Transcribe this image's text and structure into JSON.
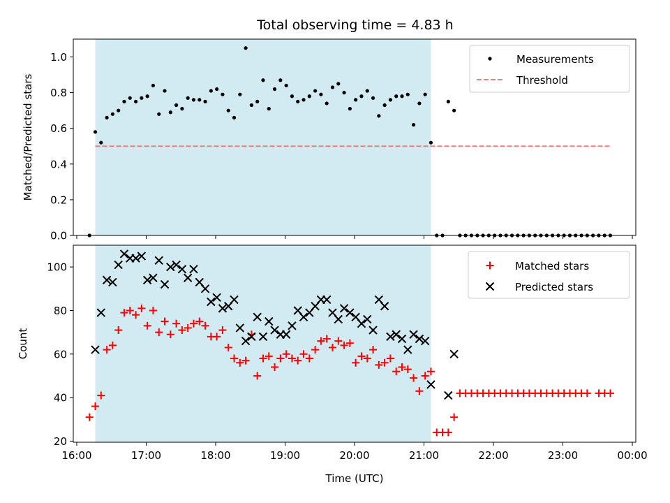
{
  "chart_data": [
    {
      "type": "scatter",
      "title": "Total observing time = 4.83 h",
      "xlabel": "",
      "ylabel": "Matched/Predicted stars",
      "xlim": [
        "15:57",
        "00:03"
      ],
      "ylim": [
        0.0,
        1.1
      ],
      "yticks": [
        0.0,
        0.2,
        0.4,
        0.6,
        0.8,
        1.0
      ],
      "ytick_labels": [
        "0.0",
        "0.2",
        "0.4",
        "0.6",
        "0.8",
        "1.0"
      ],
      "shaded_span": [
        "16:16",
        "21:06"
      ],
      "shade_color": "#add8e6",
      "grid": false,
      "legend_position": "top-right",
      "series": [
        {
          "name": "Measurements",
          "color": "#000000",
          "marker": "dot",
          "points": [
            [
              "16:11",
              0.0
            ],
            [
              "16:16",
              0.58
            ],
            [
              "16:21",
              0.52
            ],
            [
              "16:26",
              0.66
            ],
            [
              "16:31",
              0.68
            ],
            [
              "16:36",
              0.7
            ],
            [
              "16:41",
              0.75
            ],
            [
              "16:46",
              0.77
            ],
            [
              "16:51",
              0.75
            ],
            [
              "16:56",
              0.77
            ],
            [
              "17:01",
              0.78
            ],
            [
              "17:06",
              0.84
            ],
            [
              "17:11",
              0.68
            ],
            [
              "17:16",
              0.81
            ],
            [
              "17:21",
              0.69
            ],
            [
              "17:26",
              0.73
            ],
            [
              "17:31",
              0.71
            ],
            [
              "17:36",
              0.77
            ],
            [
              "17:41",
              0.76
            ],
            [
              "17:46",
              0.76
            ],
            [
              "17:51",
              0.75
            ],
            [
              "17:56",
              0.81
            ],
            [
              "18:01",
              0.82
            ],
            [
              "18:06",
              0.79
            ],
            [
              "18:11",
              0.7
            ],
            [
              "18:16",
              0.66
            ],
            [
              "18:21",
              0.79
            ],
            [
              "18:26",
              1.05
            ],
            [
              "18:31",
              0.73
            ],
            [
              "18:36",
              0.75
            ],
            [
              "18:41",
              0.87
            ],
            [
              "18:46",
              0.71
            ],
            [
              "18:51",
              0.82
            ],
            [
              "18:56",
              0.87
            ],
            [
              "19:01",
              0.84
            ],
            [
              "19:06",
              0.78
            ],
            [
              "19:11",
              0.75
            ],
            [
              "19:16",
              0.76
            ],
            [
              "19:21",
              0.78
            ],
            [
              "19:26",
              0.81
            ],
            [
              "19:31",
              0.79
            ],
            [
              "19:36",
              0.74
            ],
            [
              "19:41",
              0.83
            ],
            [
              "19:46",
              0.85
            ],
            [
              "19:51",
              0.8
            ],
            [
              "19:56",
              0.71
            ],
            [
              "20:01",
              0.76
            ],
            [
              "20:06",
              0.78
            ],
            [
              "20:11",
              0.81
            ],
            [
              "20:16",
              0.77
            ],
            [
              "20:21",
              0.67
            ],
            [
              "20:26",
              0.73
            ],
            [
              "20:31",
              0.76
            ],
            [
              "20:36",
              0.78
            ],
            [
              "20:41",
              0.78
            ],
            [
              "20:46",
              0.79
            ],
            [
              "20:51",
              0.62
            ],
            [
              "20:56",
              0.74
            ],
            [
              "21:01",
              0.79
            ],
            [
              "21:06",
              0.52
            ],
            [
              "21:11",
              0.0
            ],
            [
              "21:16",
              0.0
            ],
            [
              "21:21",
              0.75
            ],
            [
              "21:26",
              0.7
            ],
            [
              "21:31",
              0.0
            ],
            [
              "21:36",
              0.0
            ],
            [
              "21:41",
              0.0
            ],
            [
              "21:46",
              0.0
            ],
            [
              "21:51",
              0.0
            ],
            [
              "21:56",
              0.0
            ],
            [
              "22:01",
              0.0
            ],
            [
              "22:06",
              0.0
            ],
            [
              "22:11",
              0.0
            ],
            [
              "22:16",
              0.0
            ],
            [
              "22:21",
              0.0
            ],
            [
              "22:26",
              0.0
            ],
            [
              "22:31",
              0.0
            ],
            [
              "22:36",
              0.0
            ],
            [
              "22:41",
              0.0
            ],
            [
              "22:46",
              0.0
            ],
            [
              "22:51",
              0.0
            ],
            [
              "22:56",
              0.0
            ],
            [
              "23:01",
              0.0
            ],
            [
              "23:06",
              0.0
            ],
            [
              "23:11",
              0.0
            ],
            [
              "23:16",
              0.0
            ],
            [
              "23:21",
              0.0
            ],
            [
              "23:26",
              0.0
            ],
            [
              "23:31",
              0.0
            ],
            [
              "23:36",
              0.0
            ],
            [
              "23:41",
              0.0
            ]
          ]
        },
        {
          "name": "Threshold",
          "color": "#f08080",
          "style": "dashed-line",
          "points": [
            [
              "16:16",
              0.5
            ],
            [
              "23:41",
              0.5
            ]
          ]
        }
      ]
    },
    {
      "type": "scatter",
      "title": "",
      "xlabel": "Time (UTC)",
      "ylabel": "Count",
      "xlim": [
        "15:57",
        "00:03"
      ],
      "ylim": [
        19.5,
        110
      ],
      "xticks": [
        "16:00",
        "17:00",
        "18:00",
        "19:00",
        "20:00",
        "21:00",
        "22:00",
        "23:00",
        "00:00"
      ],
      "xtick_labels": [
        "16:00",
        "17:00",
        "18:00",
        "19:00",
        "20:00",
        "21:00",
        "22:00",
        "23:00",
        "00:00"
      ],
      "yticks": [
        20,
        40,
        60,
        80,
        100
      ],
      "ytick_labels": [
        "20",
        "40",
        "60",
        "80",
        "100"
      ],
      "shaded_span": [
        "16:16",
        "21:06"
      ],
      "shade_color": "#add8e6",
      "grid": false,
      "legend_position": "top-right",
      "series": [
        {
          "name": "Matched stars",
          "color": "#ff0000",
          "marker": "plus",
          "points": [
            [
              "16:11",
              31
            ],
            [
              "16:16",
              36
            ],
            [
              "16:21",
              41
            ],
            [
              "16:26",
              62
            ],
            [
              "16:31",
              64
            ],
            [
              "16:36",
              71
            ],
            [
              "16:41",
              79
            ],
            [
              "16:46",
              80
            ],
            [
              "16:51",
              78
            ],
            [
              "16:56",
              81
            ],
            [
              "17:01",
              73
            ],
            [
              "17:06",
              80
            ],
            [
              "17:11",
              70
            ],
            [
              "17:16",
              75
            ],
            [
              "17:21",
              69
            ],
            [
              "17:26",
              74
            ],
            [
              "17:31",
              71
            ],
            [
              "17:36",
              72
            ],
            [
              "17:41",
              74
            ],
            [
              "17:46",
              75
            ],
            [
              "17:51",
              73
            ],
            [
              "17:56",
              68
            ],
            [
              "18:01",
              68
            ],
            [
              "18:06",
              71
            ],
            [
              "18:11",
              63
            ],
            [
              "18:16",
              58
            ],
            [
              "18:21",
              56
            ],
            [
              "18:26",
              57
            ],
            [
              "18:31",
              69
            ],
            [
              "18:36",
              50
            ],
            [
              "18:41",
              58
            ],
            [
              "18:46",
              59
            ],
            [
              "18:51",
              54
            ],
            [
              "18:56",
              58
            ],
            [
              "19:01",
              60
            ],
            [
              "19:06",
              58
            ],
            [
              "19:11",
              57
            ],
            [
              "19:16",
              60
            ],
            [
              "19:21",
              58
            ],
            [
              "19:26",
              62
            ],
            [
              "19:31",
              66
            ],
            [
              "19:36",
              67
            ],
            [
              "19:41",
              63
            ],
            [
              "19:46",
              66
            ],
            [
              "19:51",
              64
            ],
            [
              "19:56",
              65
            ],
            [
              "20:01",
              56
            ],
            [
              "20:06",
              59
            ],
            [
              "20:11",
              58
            ],
            [
              "20:16",
              62
            ],
            [
              "20:21",
              55
            ],
            [
              "20:26",
              56
            ],
            [
              "20:31",
              58
            ],
            [
              "20:36",
              52
            ],
            [
              "20:41",
              54
            ],
            [
              "20:46",
              53
            ],
            [
              "20:51",
              49
            ],
            [
              "20:56",
              43
            ],
            [
              "21:01",
              50
            ],
            [
              "21:06",
              52
            ],
            [
              "21:11",
              24
            ],
            [
              "21:16",
              24
            ],
            [
              "21:21",
              24
            ],
            [
              "21:26",
              31
            ],
            [
              "21:31",
              42
            ],
            [
              "21:36",
              42
            ],
            [
              "21:41",
              42
            ],
            [
              "21:46",
              42
            ],
            [
              "21:51",
              42
            ],
            [
              "21:56",
              42
            ],
            [
              "22:01",
              42
            ],
            [
              "22:06",
              42
            ],
            [
              "22:11",
              42
            ],
            [
              "22:16",
              42
            ],
            [
              "22:21",
              42
            ],
            [
              "22:26",
              42
            ],
            [
              "22:31",
              42
            ],
            [
              "22:36",
              42
            ],
            [
              "22:41",
              42
            ],
            [
              "22:46",
              42
            ],
            [
              "22:51",
              42
            ],
            [
              "22:56",
              42
            ],
            [
              "23:01",
              42
            ],
            [
              "23:06",
              42
            ],
            [
              "23:11",
              42
            ],
            [
              "23:16",
              42
            ],
            [
              "23:21",
              42
            ],
            [
              "23:31",
              42
            ],
            [
              "23:36",
              42
            ],
            [
              "23:41",
              42
            ]
          ]
        },
        {
          "name": "Predicted stars",
          "color": "#000000",
          "marker": "x",
          "points": [
            [
              "16:16",
              62
            ],
            [
              "16:21",
              79
            ],
            [
              "16:26",
              94
            ],
            [
              "16:31",
              93
            ],
            [
              "16:36",
              101
            ],
            [
              "16:41",
              106
            ],
            [
              "16:46",
              104
            ],
            [
              "16:51",
              104
            ],
            [
              "16:56",
              105
            ],
            [
              "17:01",
              94
            ],
            [
              "17:06",
              95
            ],
            [
              "17:11",
              103
            ],
            [
              "17:16",
              92
            ],
            [
              "17:21",
              100
            ],
            [
              "17:26",
              101
            ],
            [
              "17:31",
              99
            ],
            [
              "17:36",
              95
            ],
            [
              "17:41",
              99
            ],
            [
              "17:46",
              93
            ],
            [
              "17:51",
              90
            ],
            [
              "17:56",
              84
            ],
            [
              "18:01",
              86
            ],
            [
              "18:06",
              81
            ],
            [
              "18:11",
              82
            ],
            [
              "18:16",
              85
            ],
            [
              "18:21",
              72
            ],
            [
              "18:26",
              66
            ],
            [
              "18:31",
              68
            ],
            [
              "18:36",
              77
            ],
            [
              "18:41",
              68
            ],
            [
              "18:46",
              75
            ],
            [
              "18:51",
              71
            ],
            [
              "18:56",
              69
            ],
            [
              "19:01",
              69
            ],
            [
              "19:06",
              73
            ],
            [
              "19:11",
              80
            ],
            [
              "19:16",
              77
            ],
            [
              "19:21",
              79
            ],
            [
              "19:26",
              82
            ],
            [
              "19:31",
              85
            ],
            [
              "19:36",
              85
            ],
            [
              "19:41",
              79
            ],
            [
              "19:46",
              76
            ],
            [
              "19:51",
              81
            ],
            [
              "19:56",
              79
            ],
            [
              "20:01",
              77
            ],
            [
              "20:06",
              74
            ],
            [
              "20:11",
              76
            ],
            [
              "20:16",
              71
            ],
            [
              "20:21",
              85
            ],
            [
              "20:26",
              82
            ],
            [
              "20:31",
              68
            ],
            [
              "20:36",
              69
            ],
            [
              "20:41",
              67
            ],
            [
              "20:46",
              62
            ],
            [
              "20:51",
              69
            ],
            [
              "20:56",
              67
            ],
            [
              "21:01",
              66
            ],
            [
              "21:06",
              46
            ],
            [
              "21:21",
              41
            ],
            [
              "21:26",
              60
            ]
          ]
        }
      ]
    }
  ]
}
